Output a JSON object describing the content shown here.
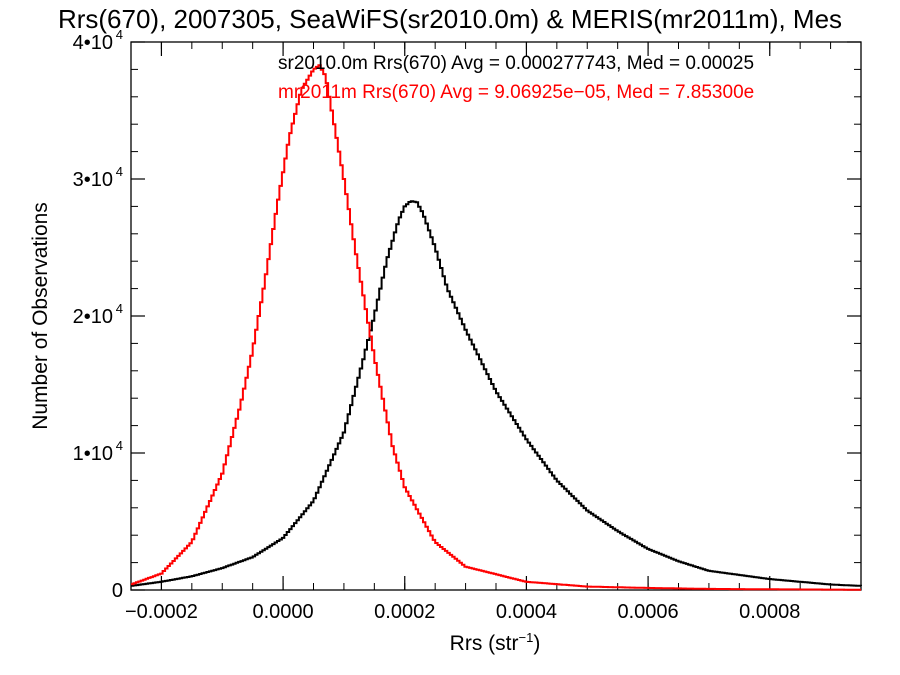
{
  "chart_data": {
    "type": "line",
    "title": "Rrs(670), 2007305, SeaWiFS(sr2010.0m) & MERIS(mr2011m), Mes",
    "xlabel": "Rrs (str",
    "xlabel_sup": "−1",
    "xlabel_tail": ")",
    "ylabel": "Number of Observations",
    "xlim": [
      -0.00025,
      0.00095
    ],
    "ylim": [
      0,
      40000
    ],
    "x_ticks": [
      {
        "value": -0.0002,
        "label": "−0.0002"
      },
      {
        "value": 0.0,
        "label": "0.0000"
      },
      {
        "value": 0.0002,
        "label": "0.0002"
      },
      {
        "value": 0.0004,
        "label": "0.0004"
      },
      {
        "value": 0.0006,
        "label": "0.0006"
      },
      {
        "value": 0.0008,
        "label": "0.0008"
      }
    ],
    "y_ticks": [
      {
        "value": 0,
        "label": "0",
        "exp": ""
      },
      {
        "value": 10000,
        "label": "1•10",
        "exp": "4"
      },
      {
        "value": 20000,
        "label": "2•10",
        "exp": "4"
      },
      {
        "value": 30000,
        "label": "3•10",
        "exp": "4"
      },
      {
        "value": 40000,
        "label": "4•10",
        "exp": "4"
      }
    ],
    "grid": false,
    "legend_position": "top-right",
    "series": [
      {
        "name": "sr2010.0m Rrs(670) Avg = 0.000277743, Med = 0.00025",
        "color": "#000000",
        "x": [
          -0.00025,
          -0.0002,
          -0.00015,
          -0.0001,
          -5e-05,
          0.0,
          5e-05,
          0.0001,
          0.00013,
          0.00015,
          0.00017,
          0.00019,
          0.0002,
          0.00021,
          0.00022,
          0.00023,
          0.00025,
          0.00027,
          0.0003,
          0.00035,
          0.0004,
          0.00045,
          0.0005,
          0.00055,
          0.0006,
          0.00065,
          0.0007,
          0.0008,
          0.0009,
          0.00095
        ],
        "y": [
          300,
          600,
          1000,
          1600,
          2400,
          3800,
          6500,
          11500,
          16500,
          20000,
          24000,
          27000,
          28000,
          28400,
          28300,
          27500,
          25000,
          22000,
          19000,
          14500,
          11000,
          8000,
          5800,
          4300,
          3000,
          2100,
          1400,
          800,
          400,
          300
        ]
      },
      {
        "name": "mr2011m Rrs(670) Avg = 9.06925e−05, Med = 7.85300e",
        "color": "#ff0000",
        "x": [
          -0.00025,
          -0.0002,
          -0.00015,
          -0.0001,
          -7e-05,
          -5e-05,
          -3e-05,
          -1e-05,
          1e-05,
          3e-05,
          5e-05,
          6e-05,
          7e-05,
          8e-05,
          0.0001,
          0.00012,
          0.00015,
          0.00018,
          0.0002,
          0.00025,
          0.0003,
          0.0004,
          0.0005,
          0.0006,
          0.0007,
          0.0008,
          0.0009,
          0.00095
        ],
        "y": [
          400,
          1200,
          3500,
          8500,
          13500,
          17500,
          22500,
          28000,
          33000,
          36500,
          38000,
          38300,
          37500,
          35000,
          30000,
          24500,
          17000,
          10500,
          7500,
          3500,
          1700,
          600,
          250,
          150,
          80,
          50,
          30,
          20
        ]
      }
    ]
  }
}
